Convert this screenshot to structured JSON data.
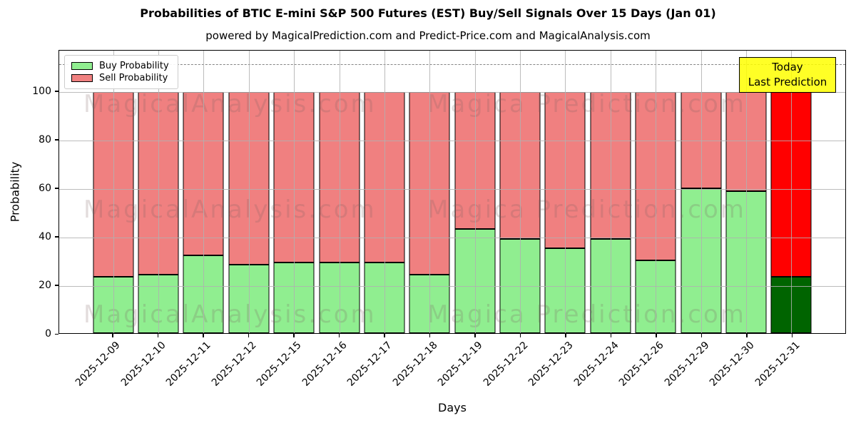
{
  "title": "Probabilities of BTIC E-mini S&P 500 Futures (EST) Buy/Sell Signals Over 15 Days (Jan 01)",
  "subtitle": "powered by MagicalPrediction.com and Predict-Price.com and MagicalAnalysis.com",
  "xlabel": "Days",
  "ylabel": "Probability",
  "legend": [
    {
      "label": "Buy Probability",
      "color": "#90EE90"
    },
    {
      "label": "Sell Probability",
      "color": "#F08080"
    }
  ],
  "annotation": {
    "line1": "Today",
    "line2": "Last Prediction",
    "bg": "#FFFF00"
  },
  "watermarks": {
    "left": "MagicalAnalysis.com",
    "right": "Magica Prediction.com"
  },
  "yticks": [
    0,
    20,
    40,
    60,
    80,
    100
  ],
  "chart_data": {
    "type": "bar",
    "stacked": true,
    "categories": [
      "2025-12-09",
      "2025-12-10",
      "2025-12-11",
      "2025-12-12",
      "2025-12-15",
      "2025-12-16",
      "2025-12-17",
      "2025-12-18",
      "2025-12-19",
      "2025-12-22",
      "2025-12-23",
      "2025-12-24",
      "2025-12-26",
      "2025-12-29",
      "2025-12-30",
      "2025-12-31"
    ],
    "series": [
      {
        "name": "Buy Probability",
        "values": [
          23,
          24,
          32,
          28,
          29,
          29,
          29,
          24,
          43,
          39,
          35,
          39,
          30,
          60,
          59,
          23
        ]
      },
      {
        "name": "Sell Probability",
        "values": [
          77,
          76,
          68,
          72,
          71,
          71,
          71,
          76,
          57,
          61,
          65,
          61,
          70,
          40,
          41,
          77
        ]
      }
    ],
    "title": "Probabilities of BTIC E-mini S&P 500 Futures (EST) Buy/Sell Signals Over 15 Days (Jan 01)",
    "xlabel": "Days",
    "ylabel": "Probability",
    "ylim": [
      0,
      117
    ],
    "dashed_line_y": 111.5,
    "grid": true,
    "legend_position": "upper left",
    "colors": {
      "buy": "#90EE90",
      "sell": "#F08080",
      "buy_last": "#006400",
      "sell_last": "#FF0000",
      "grid": "#B0B0B0",
      "annotation_bg": "#FFFF00"
    },
    "highlight_last_bar": true
  }
}
